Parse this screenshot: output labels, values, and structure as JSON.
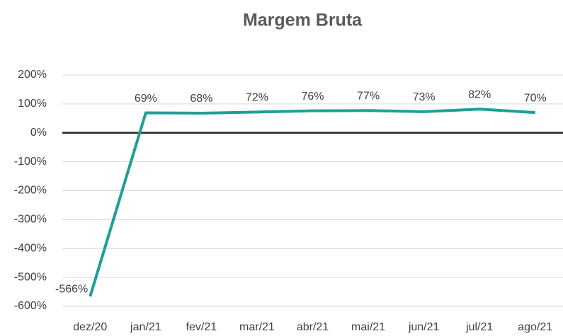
{
  "chart_data": {
    "type": "line",
    "title": "Margem Bruta",
    "categories": [
      "dez/20",
      "jan/21",
      "fev/21",
      "mar/21",
      "abr/21",
      "mai/21",
      "jun/21",
      "jul/21",
      "ago/21"
    ],
    "series": [
      {
        "name": "Margem Bruta",
        "color": "#1f9e99",
        "values": [
          -566,
          69,
          68,
          72,
          76,
          77,
          73,
          82,
          70
        ],
        "value_labels": [
          "-566%",
          "69%",
          "68%",
          "72%",
          "76%",
          "77%",
          "73%",
          "82%",
          "70%"
        ]
      }
    ],
    "ylim": [
      -600,
      200
    ],
    "yticks": [
      {
        "value": 200,
        "label": "200%"
      },
      {
        "value": 100,
        "label": "100%"
      },
      {
        "value": 0,
        "label": "0%"
      },
      {
        "value": -100,
        "label": "-100%"
      },
      {
        "value": -200,
        "label": "-200%"
      },
      {
        "value": -300,
        "label": "-300%"
      },
      {
        "value": -400,
        "label": "-400%"
      },
      {
        "value": -500,
        "label": "-500%"
      },
      {
        "value": -600,
        "label": "-600%"
      }
    ],
    "grid": true
  }
}
